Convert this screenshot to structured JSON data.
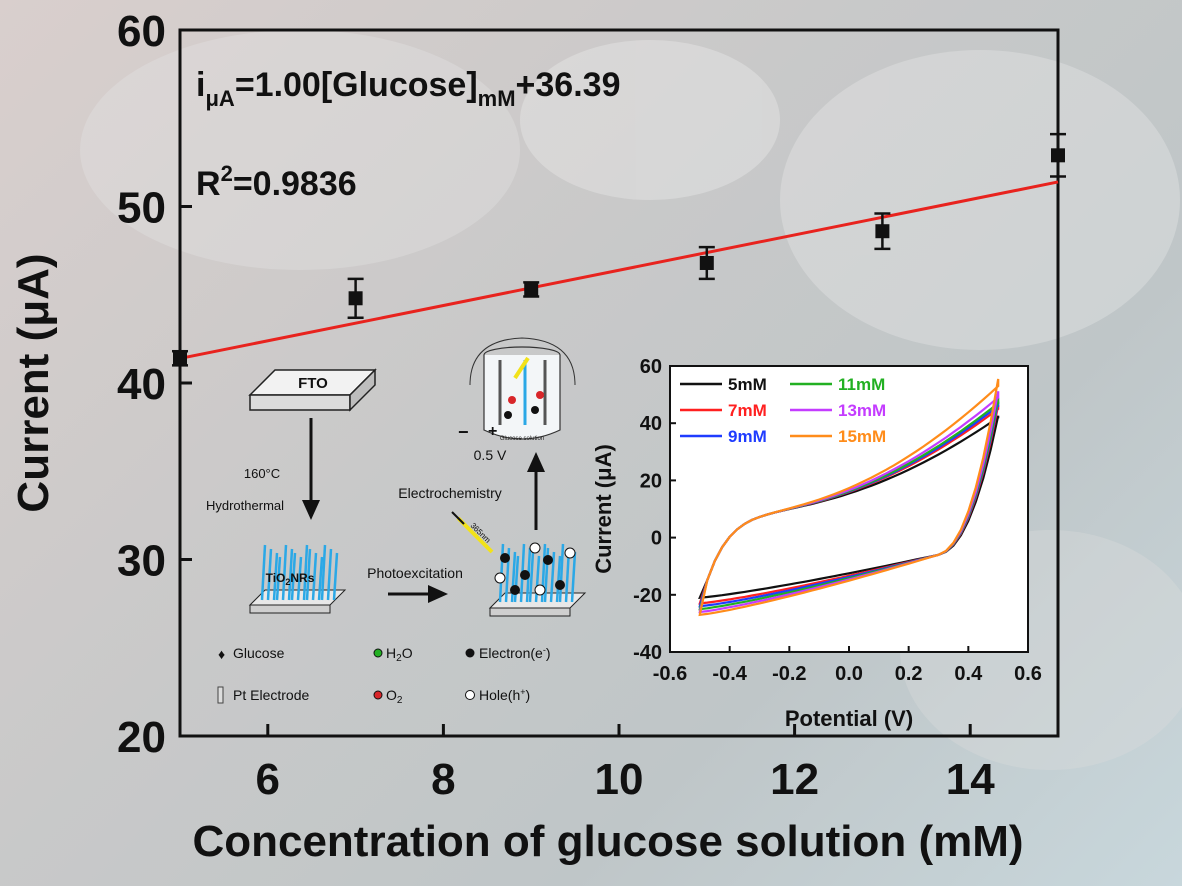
{
  "chart_data": [
    {
      "type": "scatter",
      "xlabel": "Concentration of glucose solution (mM)",
      "ylabel": "Current (μA)",
      "xlim": [
        5,
        15
      ],
      "ylim": [
        20,
        60
      ],
      "xticks": [
        6,
        8,
        10,
        12,
        14
      ],
      "yticks": [
        20,
        30,
        40,
        50,
        60
      ],
      "points": [
        {
          "x": 5,
          "y": 41.4,
          "err": 0.4
        },
        {
          "x": 7,
          "y": 44.8,
          "err": 1.1
        },
        {
          "x": 9,
          "y": 45.3,
          "err": 0.4
        },
        {
          "x": 11,
          "y": 46.8,
          "err": 0.9
        },
        {
          "x": 13,
          "y": 48.6,
          "err": 1.0
        },
        {
          "x": 15,
          "y": 52.9,
          "err": 1.2
        }
      ],
      "fit": {
        "slope": 1.0,
        "intercept": 36.39,
        "color": "#e8231e"
      },
      "annotations": {
        "eq_i": "i",
        "eq_sub1": "μA",
        "eq_mid": "=1.00[Glucose]",
        "eq_sub2": "mM",
        "eq_end": "+36.39",
        "r2_base": "R",
        "r2_sup": "2",
        "r2_val": "=0.9836"
      },
      "grid": false
    },
    {
      "type": "line",
      "subtype": "cyclic-voltammogram",
      "xlabel": "Potential (V)",
      "ylabel": "Current (μA)",
      "xlim": [
        -0.6,
        0.6
      ],
      "ylim": [
        -40,
        60
      ],
      "xticks": [
        "-0.6",
        "-0.4",
        "-0.2",
        "0.0",
        "0.2",
        "0.4",
        "0.6"
      ],
      "yticks": [
        "-40",
        "-20",
        "0",
        "20",
        "40",
        "60"
      ],
      "legend_position": "top",
      "series": [
        {
          "name": "5mM",
          "color": "#111111",
          "upper_end": 42,
          "lower_start": -21
        },
        {
          "name": "7mM",
          "color": "#ff2020",
          "upper_end": 45,
          "lower_start": -23
        },
        {
          "name": "9mM",
          "color": "#1f3cff",
          "upper_end": 46,
          "lower_start": -24
        },
        {
          "name": "11mM",
          "color": "#22b022",
          "upper_end": 47,
          "lower_start": -25
        },
        {
          "name": "13mM",
          "color": "#c43cff",
          "upper_end": 49,
          "lower_start": -26
        },
        {
          "name": "15mM",
          "color": "#ff8c1a",
          "upper_end": 53,
          "lower_start": -27
        }
      ]
    }
  ],
  "schematic": {
    "fto": "FTO",
    "temp": "160°C",
    "hydrothermal": "Hydrothermal",
    "tio2": "TiO",
    "tio2_sub": "2",
    "tio2_end": "NRs",
    "photoexcitation": "Photoexcitation",
    "electrochemistry": "Electrochemistry",
    "voltage": "0.5 V",
    "minus": "−",
    "plus": "+",
    "wavelength": "365nm",
    "solution": "Glucose solution",
    "legend": {
      "glucose": "Glucose",
      "h2o_base": "H",
      "h2o_sub": "2",
      "h2o_end": "O",
      "electron": "Electron(e",
      "electron_sup": "-",
      "electron_end": ")",
      "pt": "Pt Electrode",
      "o2_base": "O",
      "o2_sub": "2",
      "hole": "Hole(h",
      "hole_sup": "+",
      "hole_end": ")"
    }
  }
}
